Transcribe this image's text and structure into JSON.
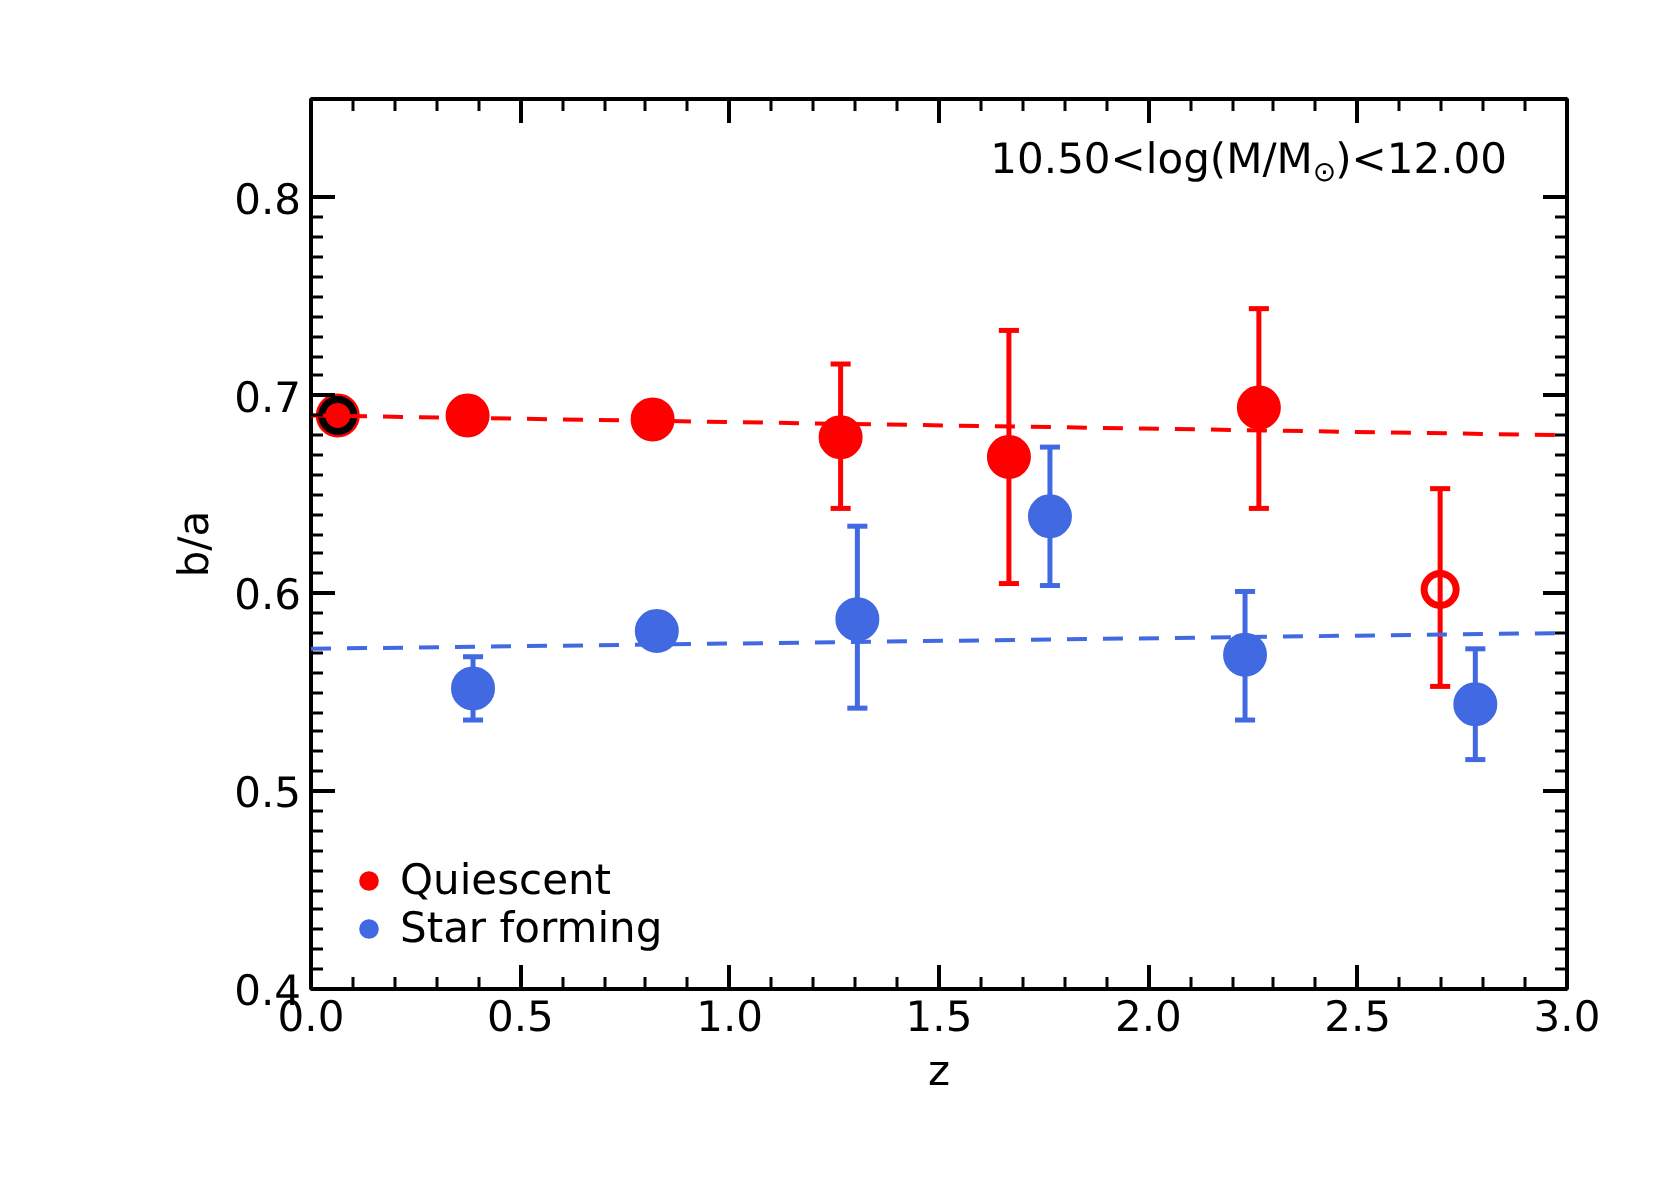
{
  "chart_data": {
    "type": "scatter",
    "xlabel": "z",
    "ylabel": "b/a",
    "annotations": [
      "10.50<log(M/M$_{⊙}$)<12.00"
    ],
    "xlim": [
      0,
      3.0
    ],
    "ylim": [
      0.4,
      0.85
    ],
    "xticks": [
      {
        "value": 0,
        "label": "0.0"
      },
      {
        "value": 0.5,
        "label": "0.5"
      },
      {
        "value": 1.0,
        "label": "1.0"
      },
      {
        "value": 1.5,
        "label": "1.5"
      },
      {
        "value": 2.0,
        "label": "2.0"
      },
      {
        "value": 2.5,
        "label": "2.5"
      },
      {
        "value": 3.0,
        "label": "3.0"
      }
    ],
    "yticks": [
      0.4,
      0.5,
      0.6,
      0.7,
      0.8
    ],
    "legend": "bottom left",
    "grid": false,
    "marker": "circle",
    "series": [
      {
        "name": "Quiescent",
        "color": "#ff0000",
        "x": [
          0.064,
          0.374,
          0.816,
          1.265,
          1.667,
          2.264
        ],
        "values": [
          0.69,
          0.69,
          0.688,
          0.679,
          0.669,
          0.694
        ],
        "errors": [
          null,
          null,
          null,
          [
            0.643,
            0.716
          ],
          [
            0.605,
            0.733
          ],
          [
            0.643,
            0.744
          ]
        ]
      },
      {
        "name": "Star forming",
        "color": "#4169e1",
        "x": [
          0.387,
          0.826,
          1.305,
          1.765,
          2.231,
          2.781
        ],
        "values": [
          0.552,
          0.581,
          0.587,
          0.639,
          0.569,
          0.544
        ],
        "errors": [
          [
            0.536,
            0.568
          ],
          null,
          [
            0.542,
            0.634
          ],
          [
            0.604,
            0.674
          ],
          [
            0.536,
            0.601
          ],
          [
            0.516,
            0.572
          ]
        ]
      },
      {
        "color": "#ff0000",
        "x": [
          2.697
        ],
        "values": [
          0.602
        ],
        "errors": [
          [
            0.553,
            0.653
          ]
        ]
      },
      {
        "color": "#000000",
        "x": [
          0.064
        ],
        "values": [
          0.69
        ]
      },
      {
        "type": "line",
        "color": "#ff0000",
        "line_style": "dashed",
        "marker": "none",
        "x": [
          0,
          3.0
        ],
        "values": [
          0.69,
          0.68
        ]
      },
      {
        "type": "line",
        "color": "#4169e1",
        "line_style": "dashed",
        "marker": "none",
        "x": [
          0,
          3.0
        ],
        "values": [
          0.572,
          0.58
        ]
      }
    ]
  }
}
